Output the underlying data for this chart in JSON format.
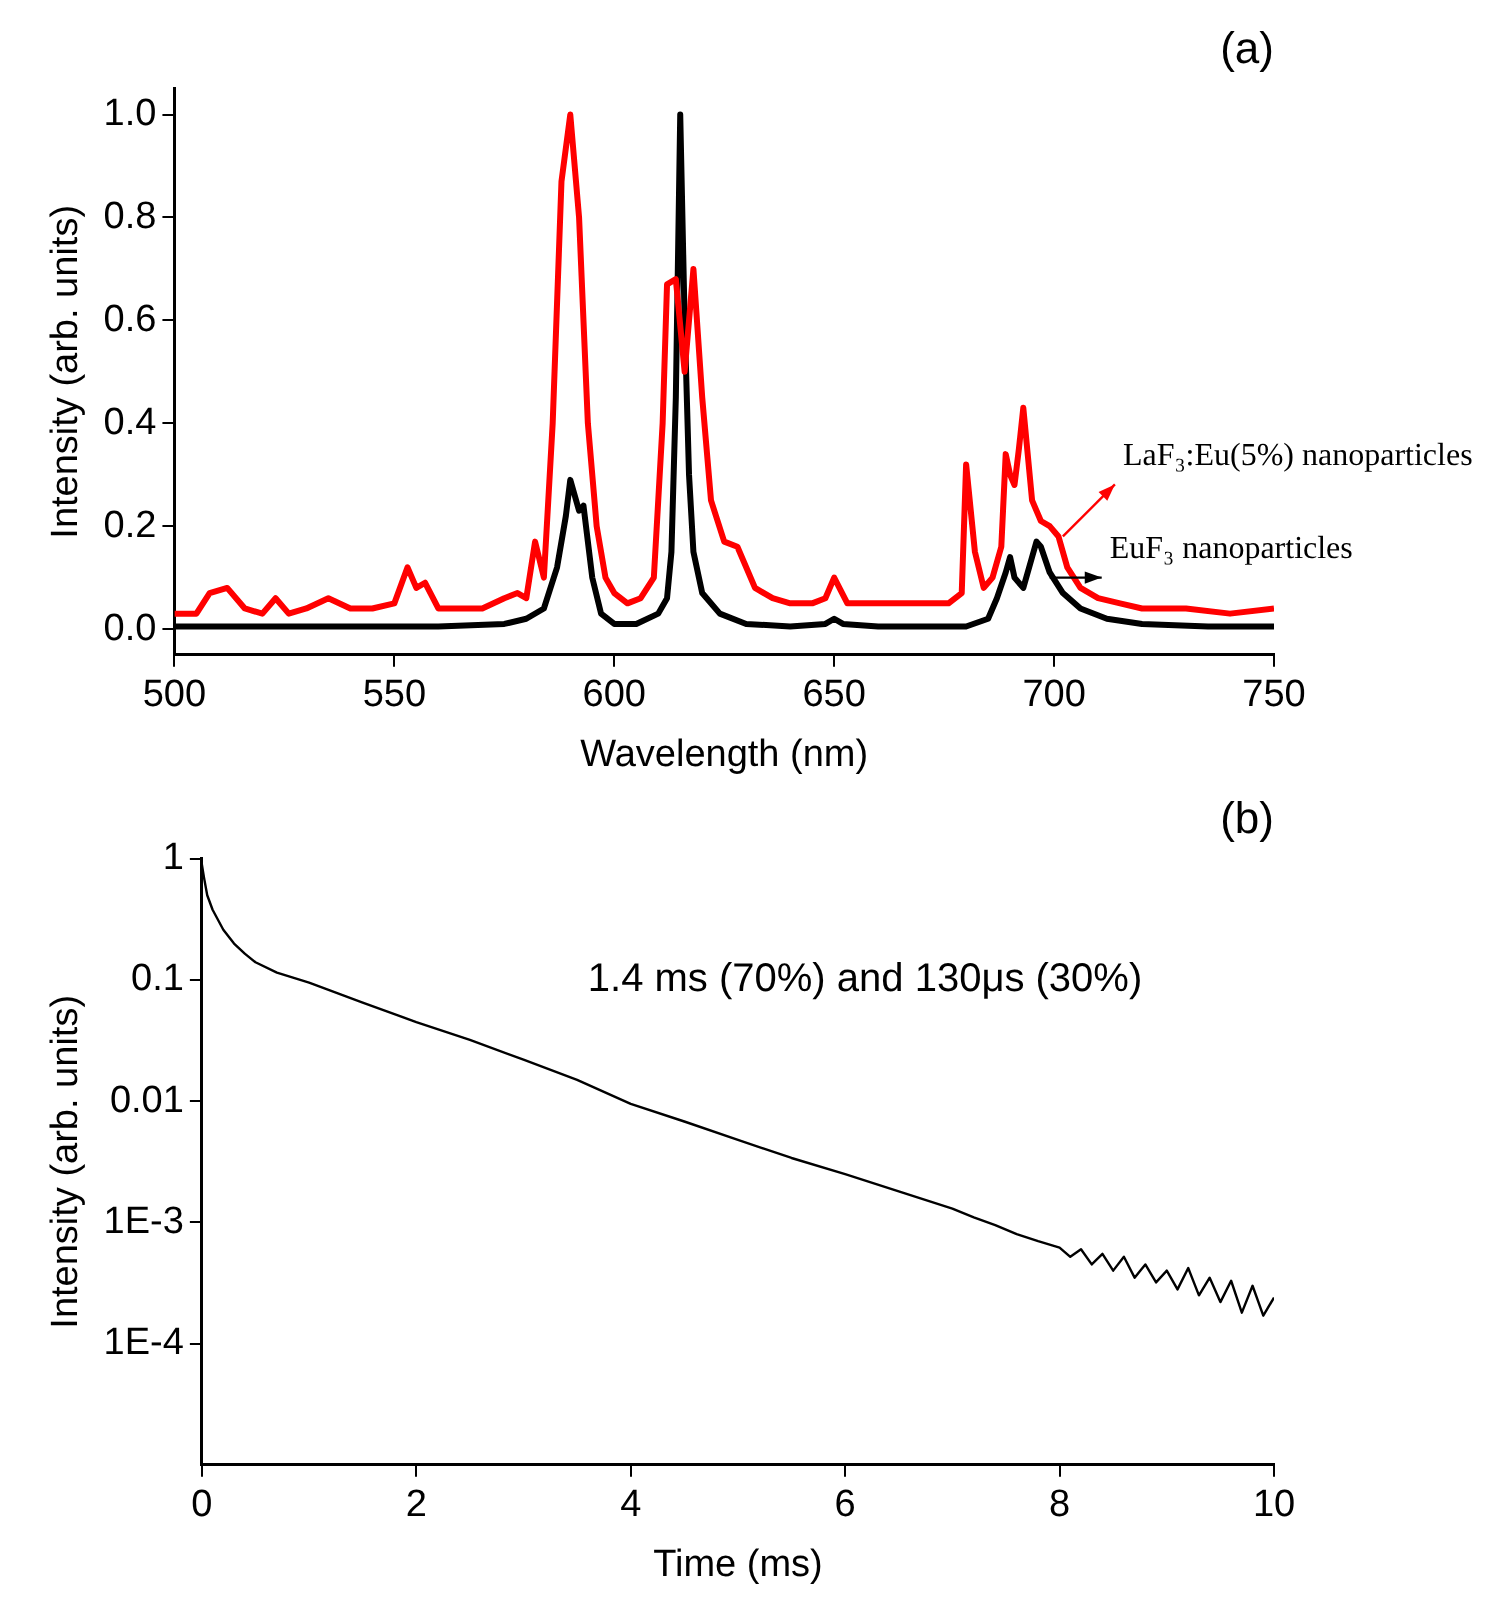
{
  "chart_data": [
    {
      "type": "line",
      "title": "(a)",
      "xlabel": "Wavelength (nm)",
      "ylabel": "Intensity (arb. units)",
      "xlim": [
        500,
        750
      ],
      "xticks": [
        500,
        550,
        600,
        650,
        700,
        750
      ],
      "ylim": [
        -0.05,
        1.05
      ],
      "yticks": [
        {
          "value": 0,
          "label": "0.0"
        },
        {
          "value": 0.2,
          "label": "0.2"
        },
        {
          "value": 0.4,
          "label": "0.4"
        },
        {
          "value": 0.6,
          "label": "0.6"
        },
        {
          "value": 0.8,
          "label": "0.8"
        },
        {
          "value": 1,
          "label": "1.0"
        }
      ],
      "grid": false,
      "legend": false,
      "marker": "none",
      "line_style": "solid",
      "series": [
        {
          "color": "#ff0000",
          "x": [
            500,
            505,
            508,
            512,
            516,
            520,
            523,
            526,
            530,
            535,
            540,
            545,
            550,
            553,
            555,
            557,
            560,
            570,
            575,
            578,
            580,
            582,
            584,
            586,
            588,
            590,
            592,
            594,
            596,
            598,
            600,
            603,
            606,
            609,
            611,
            612,
            614,
            616,
            618,
            620,
            622,
            625,
            628,
            632,
            636,
            640,
            645,
            648,
            650,
            653,
            660,
            670,
            676,
            679,
            680,
            682,
            684,
            686,
            688,
            689,
            690,
            691,
            692,
            693,
            695,
            697,
            699,
            701,
            703,
            706,
            710,
            715,
            720,
            730,
            740,
            750
          ],
          "values": [
            0.03,
            0.03,
            0.07,
            0.08,
            0.04,
            0.03,
            0.06,
            0.03,
            0.04,
            0.06,
            0.04,
            0.04,
            0.05,
            0.12,
            0.08,
            0.09,
            0.04,
            0.04,
            0.06,
            0.07,
            0.06,
            0.17,
            0.1,
            0.4,
            0.87,
            1.0,
            0.8,
            0.4,
            0.2,
            0.1,
            0.07,
            0.05,
            0.06,
            0.1,
            0.4,
            0.67,
            0.68,
            0.5,
            0.7,
            0.45,
            0.25,
            0.17,
            0.16,
            0.08,
            0.06,
            0.05,
            0.05,
            0.06,
            0.1,
            0.05,
            0.05,
            0.05,
            0.05,
            0.07,
            0.32,
            0.15,
            0.08,
            0.1,
            0.16,
            0.34,
            0.3,
            0.28,
            0.35,
            0.43,
            0.25,
            0.21,
            0.2,
            0.18,
            0.12,
            0.08,
            0.06,
            0.05,
            0.04,
            0.04,
            0.03,
            0.04
          ]
        },
        {
          "color": "#000000",
          "x": [
            500,
            520,
            540,
            560,
            575,
            580,
            584,
            587,
            589,
            590,
            591,
            592,
            593,
            595,
            597,
            600,
            605,
            610,
            612,
            613,
            614,
            615,
            616,
            617,
            618,
            620,
            624,
            630,
            640,
            648,
            650,
            652,
            660,
            680,
            685,
            687,
            689,
            690,
            691,
            693,
            695,
            696,
            697,
            699,
            702,
            706,
            712,
            720,
            735,
            750
          ],
          "values": [
            0.005,
            0.005,
            0.005,
            0.005,
            0.01,
            0.02,
            0.04,
            0.12,
            0.22,
            0.29,
            0.26,
            0.23,
            0.24,
            0.1,
            0.03,
            0.01,
            0.01,
            0.03,
            0.06,
            0.15,
            0.45,
            1.0,
            0.6,
            0.3,
            0.15,
            0.07,
            0.03,
            0.01,
            0.005,
            0.01,
            0.02,
            0.01,
            0.005,
            0.005,
            0.02,
            0.06,
            0.11,
            0.14,
            0.1,
            0.08,
            0.14,
            0.17,
            0.16,
            0.11,
            0.07,
            0.04,
            0.02,
            0.01,
            0.005,
            0.005
          ]
        }
      ],
      "annotations": [
        {
          "text": "LaF₃:Eu(5%) nanoparticles",
          "x": 702,
          "y": 0.18
        },
        {
          "text": "EuF₃ nanoparticles",
          "x": 699,
          "y": 0.1
        }
      ]
    },
    {
      "type": "line",
      "title": "(b)",
      "xlabel": "Time (ms)",
      "ylabel": "Intensity (arb. units)",
      "xlim": [
        0,
        10
      ],
      "xticks": [
        0,
        2,
        4,
        6,
        8,
        10
      ],
      "ylim": [
        1e-05,
        1
      ],
      "yticks": [
        1,
        0.1,
        0.01,
        {
          "value": 0.001,
          "label": "1E-3"
        },
        {
          "value": 0.0001,
          "label": "1E-4"
        }
      ],
      "log": "y",
      "grid": false,
      "legend": false,
      "marker": "none",
      "line_style": "solid",
      "series": [
        {
          "color": "#000000",
          "x": [
            0,
            0.02,
            0.05,
            0.1,
            0.2,
            0.3,
            0.4,
            0.5,
            0.7,
            1,
            1.5,
            2,
            2.5,
            3,
            3.5,
            4,
            4.5,
            5,
            5.5,
            6,
            6.5,
            7,
            7.2,
            7.4,
            7.6,
            7.8,
            8,
            8.1,
            8.2,
            8.3,
            8.4,
            8.5,
            8.6,
            8.7,
            8.8,
            8.9,
            9,
            9.1,
            9.2,
            9.3,
            9.4,
            9.5,
            9.6,
            9.7,
            9.8,
            9.9,
            10
          ],
          "values": [
            0.9,
            0.7,
            0.5,
            0.38,
            0.26,
            0.2,
            0.165,
            0.14,
            0.115,
            0.095,
            0.065,
            0.045,
            0.032,
            0.022,
            0.015,
            0.0095,
            0.0068,
            0.0048,
            0.0034,
            0.0025,
            0.0018,
            0.0013,
            0.0011,
            0.00095,
            0.0008,
            0.0007,
            0.00062,
            0.00052,
            0.0006,
            0.00045,
            0.00055,
            0.0004,
            0.00052,
            0.00035,
            0.00045,
            0.00032,
            0.0004,
            0.00028,
            0.00042,
            0.00025,
            0.00035,
            0.00022,
            0.00033,
            0.00018,
            0.0003,
            0.00017,
            0.00024
          ]
        }
      ],
      "annotations": [
        "1.4 ms (70%) and 130μs (30%)"
      ]
    }
  ]
}
